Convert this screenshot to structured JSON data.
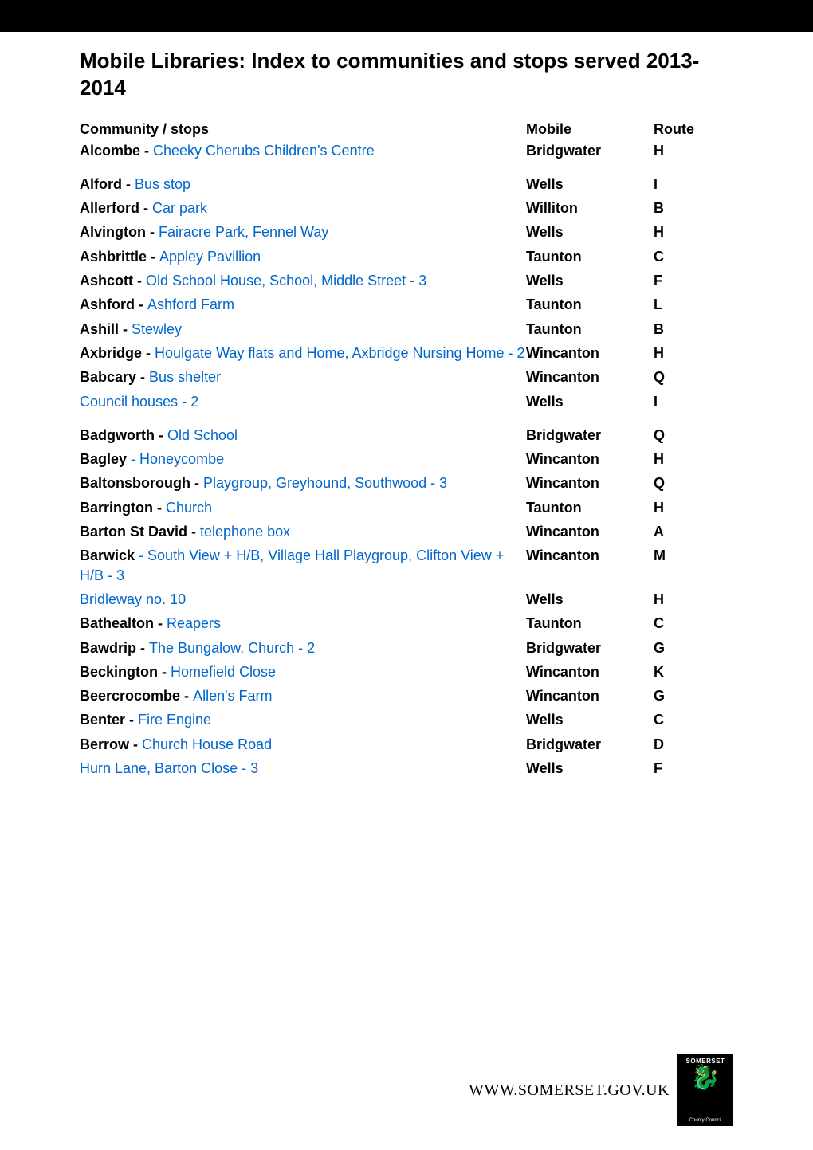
{
  "title": "Mobile Libraries: Index to communities and stops served 2013-2014",
  "headers": {
    "community": "Community / stops",
    "mobile": "Mobile",
    "route": "Route"
  },
  "rows": [
    {
      "name": "Alcombe  - ",
      "link": "Cheeky Cherubs Children's Centre",
      "mobile": "Bridgwater",
      "route": "H",
      "gapAfter": true
    },
    {
      "name": "Alford - ",
      "link": "Bus stop",
      "mobile": "Wells",
      "route": "I"
    },
    {
      "name": "Allerford - ",
      "link": "Car park",
      "mobile": "Williton",
      "route": "B"
    },
    {
      "name": "Alvington - ",
      "link": "Fairacre Park, Fennel Way",
      "mobile": "Wells",
      "route": "H"
    },
    {
      "name": "Ashbrittle - ",
      "link": "Appley Pavillion",
      "mobile": "Taunton",
      "route": "C"
    },
    {
      "name": "Ashcott - ",
      "link": "Old School House, School, Middle Street - 3",
      "mobile": "Wells",
      "route": "F"
    },
    {
      "name": "Ashford - ",
      "link": "Ashford Farm",
      "mobile": "Taunton",
      "route": "L"
    },
    {
      "name": "Ashill - ",
      "link": "Stewley",
      "mobile": "Taunton",
      "route": "B"
    },
    {
      "name": "Axbridge - ",
      "link": "Houlgate Way flats and Home, Axbridge Nursing Home - 2",
      "mobile": "Wincanton",
      "route": "H"
    },
    {
      "name": "Babcary - ",
      "link": "Bus shelter",
      "mobile": "Wincanton",
      "route": "Q"
    },
    {
      "name": "",
      "link": "Council houses - 2",
      "mobile": "Wells",
      "route": "I",
      "gapAfter": true
    },
    {
      "name": "Badgworth - ",
      "link": "Old School",
      "mobile": "Bridgwater",
      "route": "Q"
    },
    {
      "name": "Bagley",
      "link": " - Honeycombe",
      "mobile": "Wincanton",
      "route": "H"
    },
    {
      "name": "Baltonsborough - ",
      "link": "Playgroup, Greyhound, Southwood - 3",
      "mobile": "Wincanton",
      "route": "Q"
    },
    {
      "name": "Barrington - ",
      "link": "Church",
      "mobile": "Taunton",
      "route": "H"
    },
    {
      "name": "Barton St David - ",
      "link": "telephone box",
      "mobile": "Wincanton",
      "route": "A"
    },
    {
      "name": "Barwick",
      "link": " - South View + H/B, Village Hall Playgroup, Clifton View + H/B - 3",
      "mobile": "Wincanton",
      "route": "M"
    },
    {
      "name": "",
      "link": "Bridleway no. 10",
      "mobile": "Wells",
      "route": "H"
    },
    {
      "name": "Bathealton - ",
      "link": "Reapers",
      "mobile": "Taunton",
      "route": "C"
    },
    {
      "name": "Bawdrip - ",
      "link": "The Bungalow, Church - 2",
      "mobile": "Bridgwater",
      "route": "G"
    },
    {
      "name": "Beckington - ",
      "link": "Homefield Close",
      "mobile": "Wincanton",
      "route": "K"
    },
    {
      "name": "Beercrocombe - ",
      "link": "Allen's Farm",
      "mobile": "Wincanton",
      "route": "G"
    },
    {
      "name": "Benter - ",
      "link": "Fire Engine",
      "mobile": "Wells",
      "route": "C"
    },
    {
      "name": "Berrow - ",
      "link": "Church House Road",
      "mobile": "Bridgwater",
      "route": "D"
    },
    {
      "name": "",
      "link": "Hurn Lane, Barton Close - 3",
      "mobile": "Wells",
      "route": "F"
    }
  ],
  "footer": {
    "text": "WWW.SOMERSET.GOV.UK",
    "logo_top": "SOMERSET",
    "logo_bottom": "County Council"
  },
  "colors": {
    "link_color": "#0066cc",
    "text_color": "#000000",
    "bg_color": "#ffffff",
    "bar_color": "#000000"
  }
}
